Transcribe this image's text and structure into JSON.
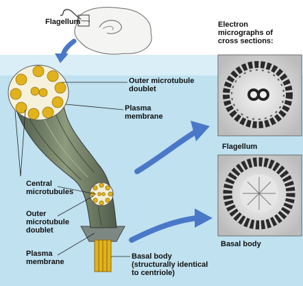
{
  "labels": {
    "flagellum_top": "Flagellum",
    "outer_doublet_1": "Outer microtubule\ndoublet",
    "plasma_membrane_1": "Plasma\nmembrane",
    "central_microtubules": "Central\nmicrotubules",
    "outer_doublet_2": "Outer\nmicrotubule\ndoublet",
    "plasma_membrane_2": "Plasma\nmembrane",
    "basal_body": "Basal body\n(structurally identical\nto centriole)"
  },
  "micrographs": {
    "heading": "Electron\nmicrographs of\ncross sections:",
    "flagellum_caption": "Flagellum",
    "basal_body_caption": "Basal body"
  },
  "colors": {
    "background": "#bfe1f0",
    "arrow": "#4a78c8",
    "tubule": "#e2b21c",
    "shaft": "#6f7d6a"
  }
}
